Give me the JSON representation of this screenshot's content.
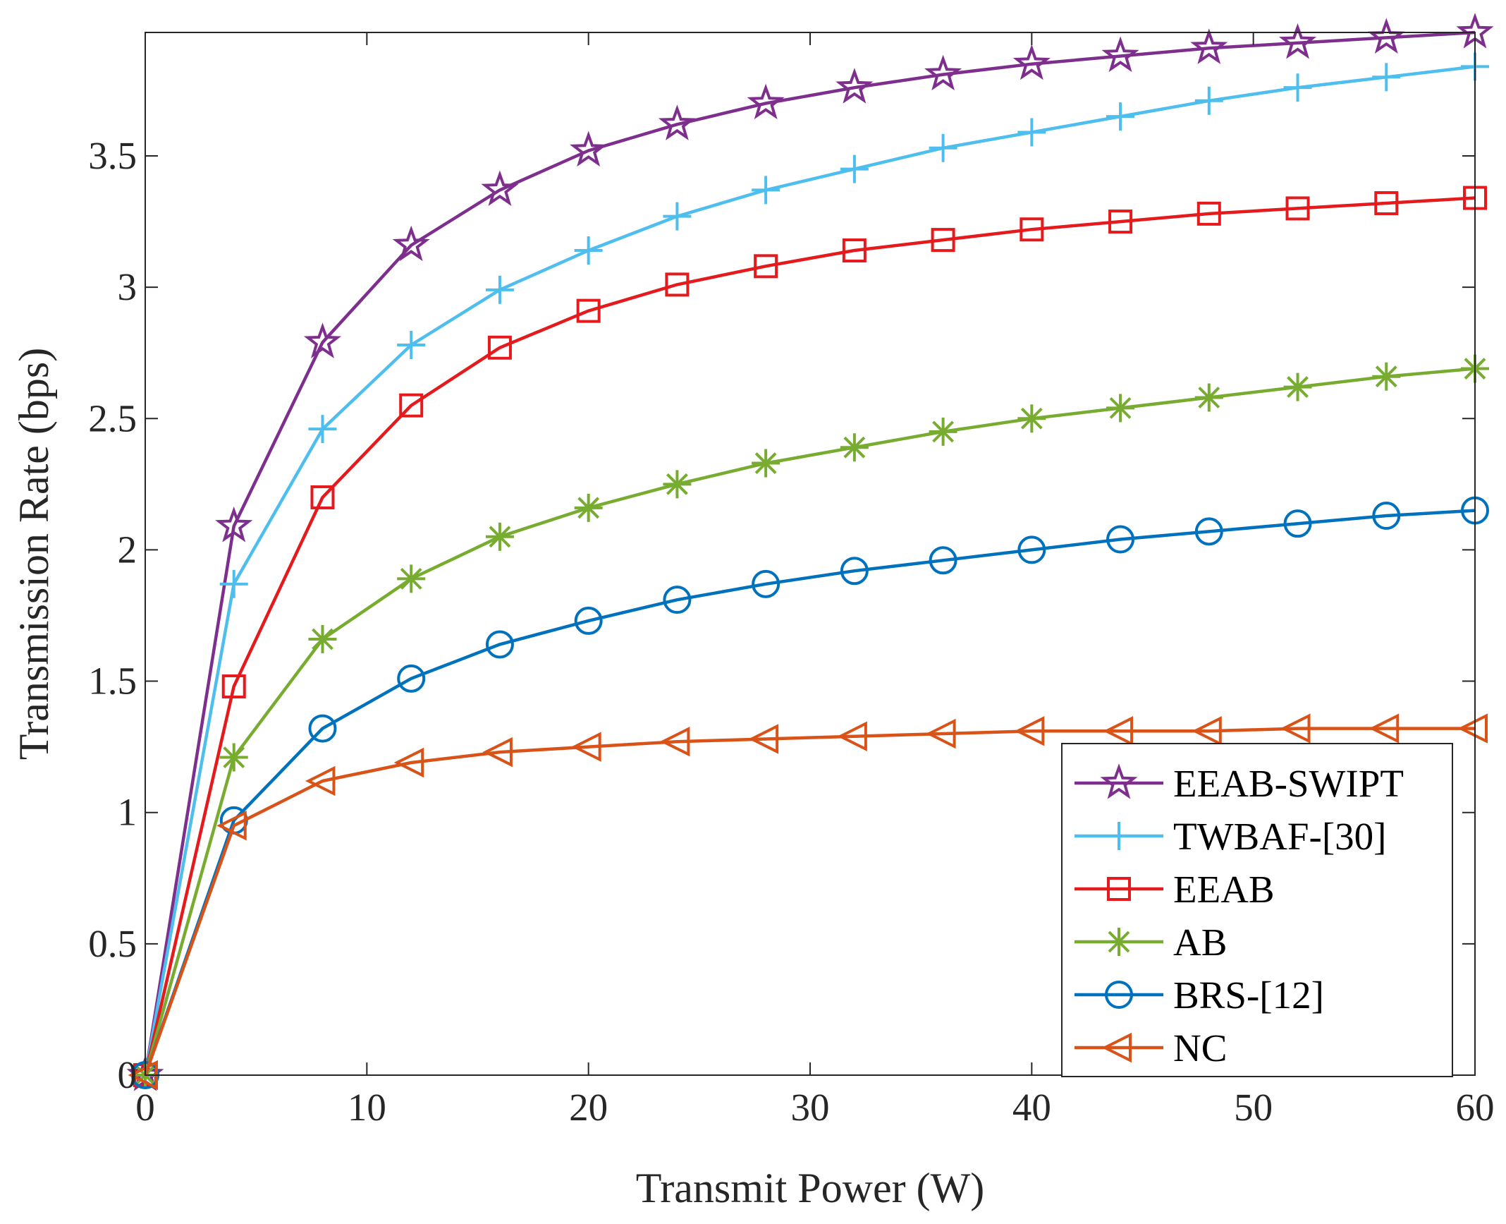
{
  "chart_data": {
    "type": "line",
    "title": "",
    "xlabel": "Transmit Power (W)",
    "ylabel": "Transmission Rate (bps)",
    "xlim": [
      0,
      60
    ],
    "ylim": [
      0,
      3.97
    ],
    "x_ticks": [
      0,
      10,
      20,
      30,
      40,
      50,
      60
    ],
    "x_tick_labels": [
      "0",
      "10",
      "20",
      "30",
      "40",
      "50",
      "60"
    ],
    "y_ticks": [
      0,
      0.5,
      1,
      1.5,
      2,
      2.5,
      3,
      3.5
    ],
    "y_tick_labels": [
      "0",
      "0.5",
      "1",
      "1.5",
      "2",
      "2.5",
      "3",
      "3.5"
    ],
    "grid": false,
    "legend_position": "bottom-right",
    "x": [
      0,
      4,
      8,
      12,
      16,
      20,
      24,
      28,
      32,
      36,
      40,
      44,
      48,
      52,
      56,
      60
    ],
    "series": [
      {
        "name": "EEAB-SWIPT",
        "color": "#7E2F8E",
        "marker": "star",
        "values": [
          0,
          2.09,
          2.79,
          3.16,
          3.37,
          3.52,
          3.62,
          3.7,
          3.76,
          3.81,
          3.85,
          3.88,
          3.91,
          3.93,
          3.95,
          3.97
        ]
      },
      {
        "name": "TWBAF-[30]",
        "color": "#4DBEEE",
        "marker": "plus",
        "values": [
          0,
          1.87,
          2.46,
          2.78,
          2.99,
          3.14,
          3.27,
          3.37,
          3.45,
          3.53,
          3.59,
          3.65,
          3.71,
          3.76,
          3.8,
          3.84
        ]
      },
      {
        "name": "EEAB",
        "color": "#E41A1C",
        "marker": "square",
        "values": [
          0,
          1.48,
          2.2,
          2.55,
          2.77,
          2.91,
          3.01,
          3.08,
          3.14,
          3.18,
          3.22,
          3.25,
          3.28,
          3.3,
          3.32,
          3.34
        ]
      },
      {
        "name": "AB",
        "color": "#77AC30",
        "marker": "asterisk",
        "values": [
          0,
          1.21,
          1.66,
          1.89,
          2.05,
          2.16,
          2.25,
          2.33,
          2.39,
          2.45,
          2.5,
          2.54,
          2.58,
          2.62,
          2.66,
          2.69
        ]
      },
      {
        "name": "BRS-[12]",
        "color": "#0072BD",
        "marker": "circle",
        "values": [
          0,
          0.97,
          1.32,
          1.51,
          1.64,
          1.73,
          1.81,
          1.87,
          1.92,
          1.96,
          2.0,
          2.04,
          2.07,
          2.1,
          2.13,
          2.15
        ]
      },
      {
        "name": "NC",
        "color": "#D95319",
        "marker": "triangle-left",
        "values": [
          0,
          0.95,
          1.12,
          1.19,
          1.23,
          1.25,
          1.27,
          1.28,
          1.29,
          1.3,
          1.31,
          1.31,
          1.31,
          1.32,
          1.32,
          1.32
        ]
      }
    ]
  }
}
